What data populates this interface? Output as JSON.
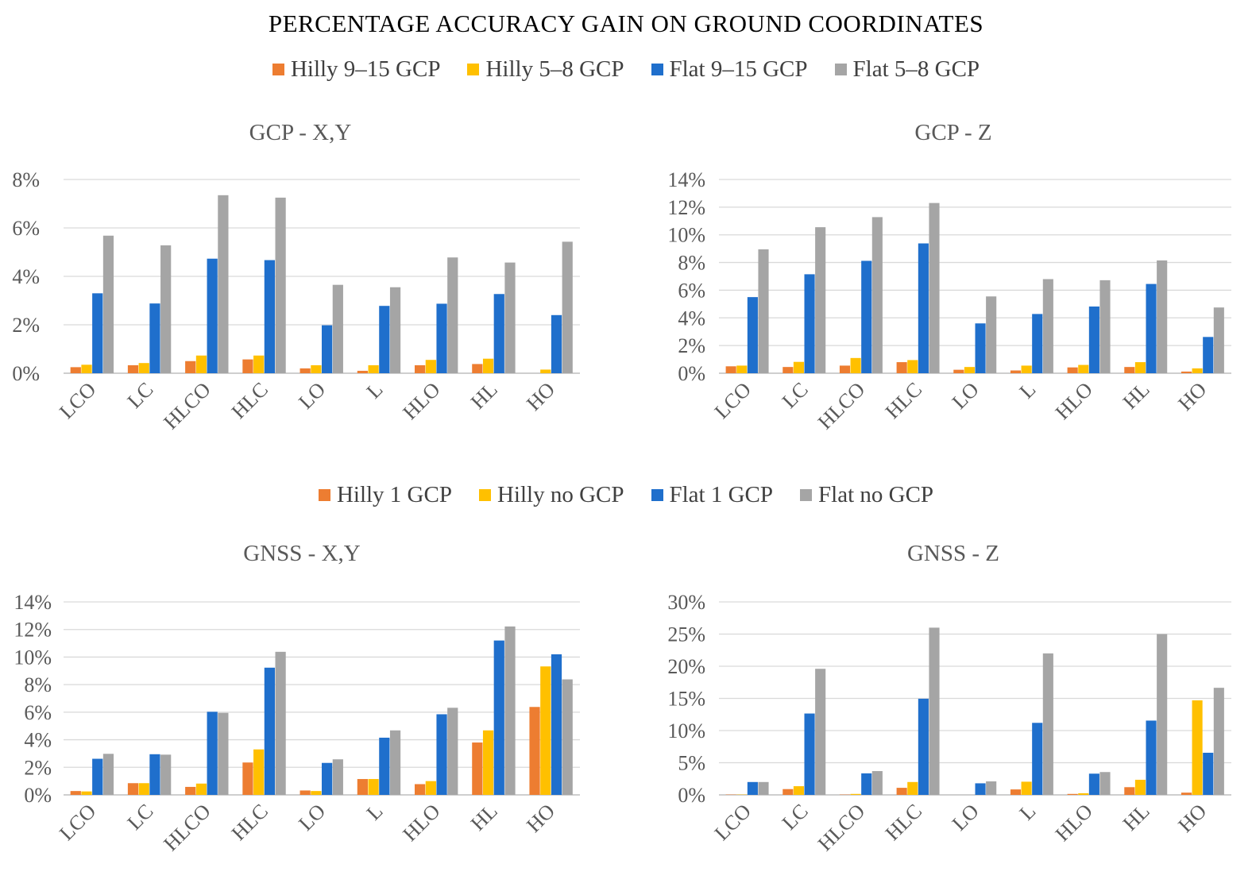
{
  "title": "PERCENTAGE ACCURACY GAIN ON GROUND COORDINATES",
  "colors": {
    "orange": "#ED7D31",
    "yellow": "#FFC000",
    "blue": "#1F6FCC",
    "gray": "#A5A5A5"
  },
  "legend_top": [
    {
      "label": "Hilly 9–15 GCP",
      "color": "#ED7D31"
    },
    {
      "label": "Hilly 5–8 GCP",
      "color": "#FFC000"
    },
    {
      "label": "Flat 9–15 GCP",
      "color": "#1F6FCC"
    },
    {
      "label": "Flat 5–8 GCP",
      "color": "#A5A5A5"
    }
  ],
  "legend_bottom": [
    {
      "label": "Hilly 1 GCP",
      "color": "#ED7D31"
    },
    {
      "label": "Hilly no GCP",
      "color": "#FFC000"
    },
    {
      "label": "Flat 1 GCP",
      "color": "#1F6FCC"
    },
    {
      "label": "Flat no GCP",
      "color": "#A5A5A5"
    }
  ],
  "chart_data": [
    {
      "type": "bar",
      "title": "GCP - X,Y",
      "categories": [
        "LCO",
        "LC",
        "HLCO",
        "HLC",
        "LO",
        "L",
        "HLO",
        "HL",
        "HO"
      ],
      "ylim": [
        0,
        8
      ],
      "yticks": [
        0,
        2,
        4,
        6,
        8
      ],
      "yunit": "%",
      "series": [
        {
          "name": "Hilly 9–15 GCP",
          "values": [
            0.25,
            0.33,
            0.5,
            0.57,
            0.2,
            0.1,
            0.33,
            0.38,
            0
          ]
        },
        {
          "name": "Hilly 5–8 GCP",
          "values": [
            0.35,
            0.42,
            0.73,
            0.73,
            0.33,
            0.33,
            0.55,
            0.6,
            0.15
          ]
        },
        {
          "name": "Flat 9–15 GCP",
          "values": [
            3.3,
            2.88,
            4.73,
            4.67,
            1.98,
            2.78,
            2.87,
            3.27,
            2.4
          ]
        },
        {
          "name": "Flat 5–8 GCP",
          "values": [
            5.68,
            5.28,
            7.35,
            7.25,
            3.65,
            3.55,
            4.78,
            4.57,
            5.43
          ]
        }
      ]
    },
    {
      "type": "bar",
      "title": "GCP - Z",
      "categories": [
        "LCO",
        "LC",
        "HLCO",
        "HLC",
        "LO",
        "L",
        "HLO",
        "HL",
        "HO"
      ],
      "ylim": [
        0,
        14
      ],
      "yticks": [
        0,
        2,
        4,
        6,
        8,
        10,
        12,
        14
      ],
      "yunit": "%",
      "series": [
        {
          "name": "Hilly 9–15 GCP",
          "values": [
            0.5,
            0.45,
            0.55,
            0.8,
            0.25,
            0.2,
            0.42,
            0.45,
            0.12
          ]
        },
        {
          "name": "Hilly 5–8 GCP",
          "values": [
            0.55,
            0.82,
            1.1,
            0.95,
            0.45,
            0.55,
            0.6,
            0.8,
            0.35
          ]
        },
        {
          "name": "Flat 9–15 GCP",
          "values": [
            5.5,
            7.15,
            8.12,
            9.38,
            3.6,
            4.28,
            4.82,
            6.45,
            2.62
          ]
        },
        {
          "name": "Flat 5–8 GCP",
          "values": [
            8.95,
            10.55,
            11.28,
            12.3,
            5.55,
            6.8,
            6.72,
            8.15,
            4.75
          ]
        }
      ]
    },
    {
      "type": "bar",
      "title": "GNSS - X,Y",
      "categories": [
        "LCO",
        "LC",
        "HLCO",
        "HLC",
        "LO",
        "L",
        "HLO",
        "HL",
        "HO"
      ],
      "ylim": [
        0,
        14
      ],
      "yticks": [
        0,
        2,
        4,
        6,
        8,
        10,
        12,
        14
      ],
      "yunit": "%",
      "series": [
        {
          "name": "Hilly 1 GCP",
          "values": [
            0.28,
            0.85,
            0.58,
            2.35,
            0.32,
            1.15,
            0.78,
            3.8,
            6.38
          ]
        },
        {
          "name": "Hilly no GCP",
          "values": [
            0.25,
            0.85,
            0.82,
            3.3,
            0.28,
            1.15,
            1.0,
            4.68,
            9.32
          ]
        },
        {
          "name": "Flat 1 GCP",
          "values": [
            2.62,
            2.95,
            6.03,
            9.23,
            2.32,
            4.15,
            5.85,
            11.2,
            10.2
          ]
        },
        {
          "name": "Flat no GCP",
          "values": [
            2.98,
            2.92,
            5.95,
            10.38,
            2.58,
            4.68,
            6.32,
            12.22,
            8.38
          ]
        }
      ]
    },
    {
      "type": "bar",
      "title": "GNSS - Z",
      "categories": [
        "LCO",
        "LC",
        "HLCO",
        "HLC",
        "LO",
        "L",
        "HLO",
        "HL",
        "HO"
      ],
      "ylim": [
        0,
        30
      ],
      "yticks": [
        0,
        5,
        10,
        15,
        20,
        25,
        30
      ],
      "yunit": "%",
      "series": [
        {
          "name": "Hilly 1 GCP",
          "values": [
            0.05,
            0.9,
            0.05,
            1.1,
            0.0,
            0.85,
            0.15,
            1.2,
            0.35
          ]
        },
        {
          "name": "Hilly no GCP",
          "values": [
            0.05,
            1.35,
            0.15,
            2.0,
            0.0,
            2.05,
            0.25,
            2.35,
            14.7
          ]
        },
        {
          "name": "Flat 1 GCP",
          "values": [
            2.0,
            12.65,
            3.35,
            14.95,
            1.8,
            11.2,
            3.3,
            11.55,
            6.55
          ]
        },
        {
          "name": "Flat no GCP",
          "values": [
            2.0,
            19.6,
            3.7,
            26.0,
            2.1,
            22.0,
            3.55,
            25.0,
            16.65
          ]
        }
      ]
    }
  ]
}
